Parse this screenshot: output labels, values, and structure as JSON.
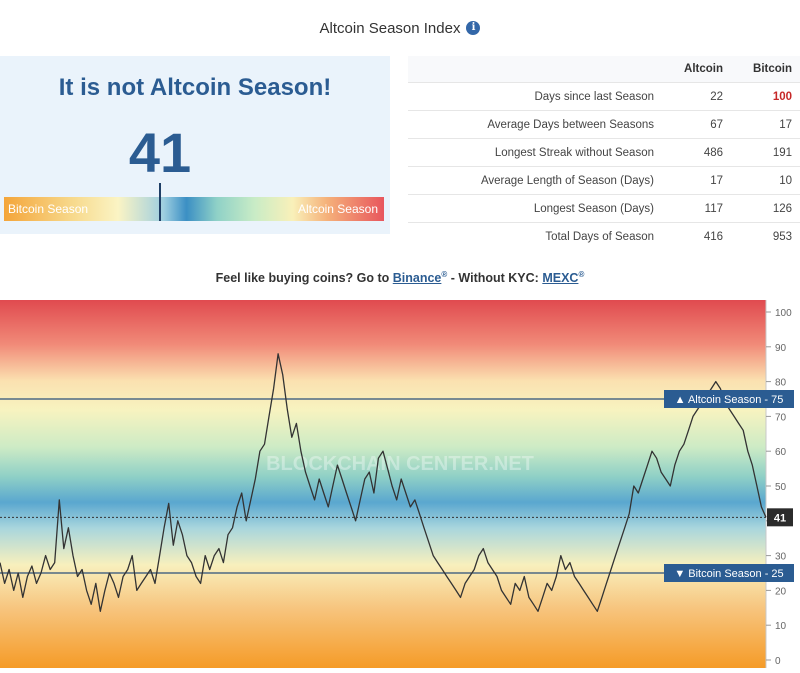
{
  "header": {
    "title": "Altcoin Season Index",
    "info_icon": "info-circle-icon"
  },
  "index": {
    "status": "It is not Altcoin Season!",
    "value": "41",
    "value_fraction": 0.41,
    "gauge_left": "Bitcoin Season",
    "gauge_right": "Altcoin Season"
  },
  "stats": {
    "columns": [
      "",
      "Altcoin",
      "Bitcoin"
    ],
    "rows": [
      {
        "label": "Days since last Season",
        "altcoin": "22",
        "bitcoin": "100",
        "bitcoin_highlight": true
      },
      {
        "label": "Average Days between Seasons",
        "altcoin": "67",
        "bitcoin": "17"
      },
      {
        "label": "Longest Streak without Season",
        "altcoin": "486",
        "bitcoin": "191"
      },
      {
        "label": "Average Length of Season (Days)",
        "altcoin": "17",
        "bitcoin": "10"
      },
      {
        "label": "Longest Season (Days)",
        "altcoin": "117",
        "bitcoin": "126"
      },
      {
        "label": "Total Days of Season",
        "altcoin": "416",
        "bitcoin": "953"
      }
    ]
  },
  "promo": {
    "text1": "Feel like buying coins? Go to ",
    "link1": "Binance",
    "text2": " - Without KYC: ",
    "link2": "MEXC",
    "reg": "®"
  },
  "colors": {
    "accent": "#2b5c92",
    "highlight_red": "#c62828",
    "label_box": "#2b5c92"
  },
  "chart_data": {
    "type": "line",
    "ylim": [
      0,
      100
    ],
    "yticks": [
      0,
      10,
      20,
      30,
      40,
      50,
      60,
      70,
      80,
      90,
      100
    ],
    "series": [
      {
        "values": [
          28,
          22,
          26,
          20,
          25,
          18,
          24,
          27,
          22,
          25,
          30,
          26,
          28,
          46,
          32,
          38,
          30,
          24,
          26,
          20,
          16,
          22,
          14,
          20,
          25,
          22,
          18,
          24,
          26,
          30,
          20,
          22,
          24,
          26,
          22,
          30,
          38,
          45,
          33,
          40,
          36,
          30,
          28,
          24,
          22,
          30,
          26,
          30,
          32,
          28,
          36,
          38,
          44,
          48,
          40,
          46,
          52,
          60,
          62,
          70,
          78,
          88,
          82,
          72,
          64,
          68,
          60,
          54,
          50,
          46,
          52,
          48,
          44,
          50,
          56,
          52,
          48,
          44,
          40,
          46,
          52,
          54,
          48,
          58,
          60,
          55,
          50,
          46,
          52,
          48,
          44,
          46,
          42,
          38,
          34,
          30,
          28,
          26,
          24,
          22,
          20,
          18,
          22,
          24,
          26,
          30,
          32,
          28,
          26,
          24,
          20,
          18,
          16,
          22,
          20,
          24,
          18,
          16,
          14,
          18,
          22,
          20,
          24,
          30,
          26,
          28,
          24,
          22,
          20,
          18,
          16,
          14,
          18,
          22,
          26,
          30,
          34,
          38,
          42,
          50,
          48,
          52,
          56,
          60,
          58,
          54,
          52,
          50,
          56,
          60,
          62,
          66,
          70,
          72,
          74,
          76,
          78,
          80,
          78,
          74,
          72,
          70,
          68,
          66,
          60,
          56,
          50,
          44,
          41
        ]
      }
    ],
    "bands": [
      {
        "name": "Altcoin Season",
        "value": 75,
        "label": "▲ Altcoin Season - 75"
      },
      {
        "name": "Bitcoin Season",
        "value": 25,
        "label": "▼ Bitcoin Season - 25"
      }
    ],
    "current_value": 41,
    "current_label": "41",
    "watermark": "BLOCKCHAIN CENTER.NET"
  }
}
